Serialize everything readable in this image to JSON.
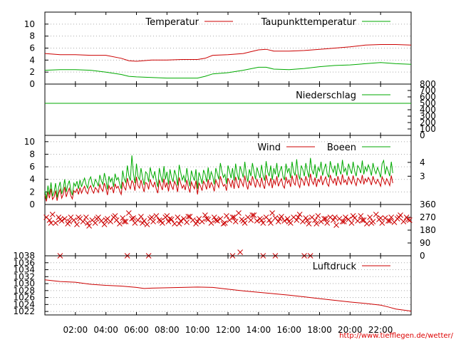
{
  "footer_url": "http://www.tiefflegen.de/wetter/",
  "time_axis": {
    "range_h": [
      0,
      24
    ],
    "ticks": [
      2,
      4,
      6,
      8,
      10,
      12,
      14,
      16,
      18,
      20,
      22
    ],
    "labels": [
      "02:00",
      "04:00",
      "06:00",
      "08:00",
      "10:00",
      "12:00",
      "14:00",
      "16:00",
      "18:00",
      "20:00",
      "22:00"
    ]
  },
  "chart_data": [
    {
      "type": "line",
      "id": "temperature",
      "ylim": [
        0,
        12
      ],
      "left_ticks": [
        0,
        2,
        4,
        6,
        8,
        10
      ],
      "grid": true,
      "legend_position": "top-right",
      "x": [
        0,
        1,
        2,
        3,
        4,
        5,
        5.5,
        6,
        7,
        8,
        9,
        10,
        10.5,
        11,
        12,
        13,
        14,
        14.5,
        15,
        16,
        17,
        18,
        19,
        20,
        21,
        22,
        23,
        24
      ],
      "series": [
        {
          "name": "Temperatur",
          "color": "#cc0000",
          "values": [
            5.1,
            4.9,
            4.9,
            4.8,
            4.8,
            4.3,
            3.9,
            3.8,
            4.0,
            4.0,
            4.1,
            4.1,
            4.3,
            4.8,
            4.9,
            5.1,
            5.7,
            5.8,
            5.5,
            5.5,
            5.6,
            5.8,
            6.0,
            6.2,
            6.5,
            6.6,
            6.6,
            6.5
          ]
        },
        {
          "name": "Taupunkttemperatur",
          "color": "#00aa00",
          "values": [
            2.3,
            2.4,
            2.4,
            2.3,
            2.0,
            1.6,
            1.3,
            1.2,
            1.1,
            1.0,
            1.0,
            1.0,
            1.3,
            1.7,
            1.9,
            2.3,
            2.8,
            2.8,
            2.5,
            2.4,
            2.6,
            2.9,
            3.1,
            3.2,
            3.4,
            3.6,
            3.4,
            3.3
          ]
        }
      ]
    },
    {
      "type": "line",
      "id": "precipitation",
      "ylim": [
        0,
        800
      ],
      "right_ticks": [
        0,
        100,
        200,
        300,
        400,
        500,
        600,
        700,
        800
      ],
      "legend_position": "top-right",
      "x": [
        0,
        24
      ],
      "series": [
        {
          "name": "Niederschlag",
          "color": "#00aa00",
          "values": [
            500,
            500
          ]
        }
      ]
    },
    {
      "type": "line",
      "id": "wind",
      "ylim": [
        0,
        11
      ],
      "left_ticks": [
        0,
        2,
        4,
        6,
        8,
        10
      ],
      "right_ticks": [
        3,
        4
      ],
      "right_tick_positions": [
        4.5,
        6.7
      ],
      "grid": true,
      "legend_position": "top-right",
      "x_start": 0,
      "x_step": 0.1,
      "series": [
        {
          "name": "Wind",
          "color": "#cc0000",
          "values": [
            1.5,
            0.5,
            2.0,
            1.0,
            2.5,
            0.8,
            1.2,
            2.2,
            0.6,
            1.8,
            2.4,
            1.0,
            1.6,
            2.8,
            1.2,
            2.0,
            2.6,
            1.4,
            0.9,
            2.2,
            1.9,
            2.5,
            1.6,
            2.7,
            1.8,
            2.4,
            2.9,
            2.1,
            1.7,
            2.6,
            3.0,
            2.2,
            1.8,
            2.7,
            2.4,
            1.9,
            3.2,
            2.5,
            2.1,
            3.4,
            2.6,
            1.5,
            3.0,
            2.4,
            2.8,
            1.8,
            3.3,
            2.6,
            2.9,
            2.2,
            1.6,
            3.6,
            2.7,
            2.3,
            4.2,
            3.1,
            2.5,
            3.8,
            3.4,
            2.2,
            4.4,
            3.0,
            2.6,
            3.9,
            2.9,
            2.0,
            3.5,
            3.3,
            2.4,
            4.0,
            3.2,
            2.8,
            3.6,
            2.5,
            1.8,
            3.9,
            3.0,
            2.3,
            4.1,
            2.7,
            3.5,
            2.1,
            3.8,
            2.9,
            2.4,
            3.7,
            3.1,
            2.0,
            4.3,
            3.4,
            2.6,
            3.1,
            2.3,
            3.9,
            2.8,
            1.9,
            3.6,
            3.0,
            2.5,
            3.8,
            1.6,
            3.4,
            2.9,
            2.2,
            3.7,
            3.2,
            2.4,
            4.0,
            2.6,
            3.5,
            3.0,
            2.1,
            3.9,
            3.3,
            2.7,
            4.5,
            3.6,
            2.9,
            3.2,
            2.2,
            4.2,
            3.6,
            2.8,
            3.9,
            2.5,
            4.4,
            3.3,
            2.6,
            4.1,
            3.5,
            2.9,
            4.6,
            3.2,
            2.4,
            3.8,
            3.0,
            4.5,
            3.6,
            2.7,
            4.0,
            3.4,
            2.8,
            4.3,
            3.1,
            2.5,
            4.7,
            3.5,
            3.0,
            4.2,
            2.6,
            3.9,
            3.2,
            4.5,
            2.9,
            3.6,
            4.1,
            3.0,
            2.6,
            4.4,
            3.4,
            3.9,
            2.8,
            4.6,
            3.5,
            3.1,
            4.8,
            3.3,
            2.7,
            4.2,
            3.8,
            3.0,
            4.5,
            3.6,
            2.9,
            4.9,
            3.7,
            3.2,
            4.3,
            2.8,
            4.0,
            3.6,
            4.6,
            3.1,
            3.8,
            4.4,
            3.3,
            2.9,
            4.7,
            3.9,
            3.4,
            4.2,
            3.0,
            4.5,
            3.7,
            3.2,
            4.8,
            3.5,
            3.9,
            3.1,
            4.4,
            3.8,
            3.3,
            4.6,
            3.6,
            3.0,
            4.2,
            3.9,
            3.4,
            4.7,
            3.2,
            4.1,
            3.6,
            4.3,
            3.8,
            3.1,
            4.5,
            3.7,
            3.3,
            4.0,
            3.5,
            2.9,
            4.4,
            3.8,
            3.2,
            4.1,
            3.6,
            3.0,
            4.6,
            3.4
          ]
        },
        {
          "name": "Boeen",
          "color": "#00aa00",
          "values": [
            2.2,
            0.9,
            3.0,
            1.6,
            3.5,
            1.3,
            2.0,
            3.4,
            1.1,
            2.7,
            3.6,
            1.7,
            2.5,
            4.0,
            2.0,
            3.1,
            3.8,
            2.3,
            1.5,
            3.4,
            2.9,
            3.7,
            2.5,
            3.9,
            2.8,
            3.6,
            4.2,
            3.2,
            2.6,
            3.9,
            4.4,
            3.3,
            2.8,
            4.0,
            3.6,
            2.9,
            4.7,
            3.8,
            3.2,
            5.0,
            3.9,
            2.4,
            4.5,
            3.6,
            4.2,
            2.8,
            4.9,
            3.9,
            4.3,
            3.3,
            2.5,
            5.4,
            4.0,
            3.5,
            6.2,
            4.6,
            3.8,
            7.8,
            5.0,
            3.4,
            6.5,
            4.5,
            3.9,
            5.8,
            4.3,
            3.1,
            5.2,
            4.9,
            3.6,
            5.9,
            4.8,
            4.2,
            5.3,
            3.8,
            2.8,
            5.8,
            4.5,
            3.5,
            6.1,
            4.0,
            5.2,
            3.2,
            5.6,
            4.3,
            3.6,
            5.5,
            4.6,
            3.0,
            6.3,
            5.1,
            3.9,
            4.6,
            3.5,
            5.8,
            4.2,
            2.9,
            5.4,
            4.5,
            3.8,
            5.6,
            2.5,
            5.1,
            4.3,
            3.3,
            5.5,
            4.8,
            3.6,
            5.9,
            3.9,
            5.2,
            4.5,
            3.2,
            5.8,
            4.9,
            4.0,
            6.6,
            5.3,
            4.3,
            4.8,
            3.3,
            6.2,
            5.3,
            4.2,
            5.8,
            3.8,
            6.5,
            4.9,
            3.9,
            6.1,
            5.2,
            4.3,
            6.8,
            4.8,
            3.6,
            5.6,
            4.5,
            6.6,
            5.3,
            4.0,
            5.9,
            5.0,
            4.2,
            6.3,
            4.6,
            3.8,
            6.9,
            5.2,
            4.5,
            6.2,
            3.9,
            5.8,
            4.8,
            6.6,
            4.3,
            5.3,
            6.1,
            4.5,
            3.9,
            6.5,
            5.1,
            5.8,
            4.2,
            6.8,
            5.2,
            4.6,
            7.2,
            4.9,
            4.0,
            6.2,
            5.6,
            4.5,
            6.6,
            5.3,
            4.3,
            7.4,
            5.5,
            4.8,
            6.4,
            4.2,
            5.9,
            5.3,
            6.8,
            4.6,
            5.6,
            6.5,
            4.9,
            4.3,
            6.9,
            5.8,
            5.1,
            6.2,
            4.5,
            6.6,
            5.5,
            4.8,
            7.1,
            5.2,
            5.8,
            4.6,
            6.5,
            5.6,
            4.9,
            6.8,
            5.3,
            4.5,
            6.2,
            5.8,
            5.0,
            7.0,
            4.8,
            6.0,
            5.3,
            6.3,
            5.6,
            4.6,
            6.6,
            5.5,
            4.9,
            5.9,
            5.2,
            4.3,
            6.5,
            7.0,
            4.8,
            6.0,
            5.3,
            4.5,
            6.8,
            5.0
          ]
        }
      ]
    },
    {
      "type": "scatter",
      "id": "wind_direction",
      "ylim": [
        0,
        360
      ],
      "right_ticks": [
        0,
        90,
        180,
        270,
        360
      ],
      "color": "#cc0000",
      "x": [
        0.1,
        0.3,
        0.5,
        0.7,
        0.9,
        1.1,
        1.3,
        1.5,
        1.7,
        1.9,
        2.1,
        2.3,
        2.5,
        2.7,
        2.9,
        3.1,
        3.3,
        3.5,
        3.7,
        3.9,
        4.1,
        4.3,
        4.5,
        4.7,
        4.9,
        5.1,
        5.3,
        5.5,
        5.7,
        5.9,
        6.1,
        6.3,
        6.5,
        6.7,
        6.9,
        7.1,
        7.3,
        7.5,
        7.7,
        7.9,
        8.1,
        8.3,
        8.5,
        8.7,
        8.9,
        9.1,
        9.3,
        9.5,
        9.7,
        9.9,
        10.1,
        10.3,
        10.5,
        10.7,
        10.9,
        11.1,
        11.3,
        11.5,
        11.7,
        11.9,
        12.1,
        12.3,
        12.5,
        12.7,
        12.9,
        13.1,
        13.3,
        13.5,
        13.7,
        13.9,
        14.1,
        14.3,
        14.5,
        14.7,
        14.9,
        15.1,
        15.3,
        15.5,
        15.7,
        15.9,
        16.1,
        16.3,
        16.5,
        16.7,
        16.9,
        17.1,
        17.3,
        17.5,
        17.7,
        17.9,
        18.1,
        18.3,
        18.5,
        18.7,
        18.9,
        19.1,
        19.3,
        19.5,
        19.7,
        19.9,
        20.1,
        20.3,
        20.5,
        20.7,
        20.9,
        21.1,
        21.3,
        21.5,
        21.7,
        21.9,
        22.1,
        22.3,
        22.5,
        22.7,
        22.9,
        23.1,
        23.3,
        23.5,
        23.7,
        23.9,
        0.4,
        1.0,
        1.6,
        2.2,
        2.8,
        3.4,
        4.0,
        4.6,
        5.2,
        5.8,
        6.4,
        7.0,
        7.6,
        8.2,
        8.8,
        9.4,
        10.0,
        10.6,
        11.2,
        11.8,
        12.4,
        13.0,
        13.6,
        14.2,
        14.8,
        15.4,
        16.0,
        16.6,
        17.2,
        17.8,
        18.4,
        19.0,
        19.6,
        20.2,
        20.8,
        21.4,
        22.0,
        22.6,
        23.2,
        23.8,
        1.0,
        5.4,
        6.8,
        12.3,
        14.3,
        15.1,
        17.0,
        17.4,
        12.8,
        8.0
      ],
      "y": [
        270,
        250,
        290,
        230,
        270,
        245,
        260,
        225,
        270,
        250,
        220,
        260,
        240,
        270,
        210,
        250,
        230,
        270,
        245,
        220,
        260,
        240,
        270,
        250,
        225,
        265,
        240,
        300,
        260,
        230,
        250,
        275,
        245,
        220,
        260,
        240,
        280,
        250,
        230,
        270,
        240,
        255,
        225,
        270,
        245,
        260,
        235,
        275,
        250,
        225,
        260,
        240,
        285,
        255,
        230,
        270,
        245,
        260,
        225,
        280,
        250,
        270,
        240,
        300,
        255,
        230,
        270,
        250,
        285,
        245,
        260,
        230,
        270,
        250,
        300,
        265,
        240,
        275,
        245,
        260,
        230,
        270,
        250,
        290,
        240,
        265,
        225,
        270,
        250,
        280,
        240,
        260,
        230,
        270,
        250,
        215,
        260,
        240,
        270,
        255,
        230,
        265,
        245,
        280,
        250,
        225,
        270,
        240,
        290,
        255,
        230,
        265,
        245,
        270,
        235,
        260,
        285,
        240,
        270,
        250,
        230,
        255,
        240,
        270,
        230,
        260,
        250,
        280,
        240,
        265,
        230,
        270,
        245,
        260,
        225,
        275,
        240,
        260,
        250,
        230,
        270,
        245,
        285,
        250,
        230,
        260,
        240,
        270,
        250,
        225,
        260,
        270,
        240,
        280,
        250,
        230,
        265,
        245,
        270,
        255,
        0,
        0,
        0,
        0,
        0,
        0,
        0,
        0,
        25,
        280
      ]
    },
    {
      "type": "line",
      "id": "pressure",
      "ylim": [
        1021,
        1038
      ],
      "left_ticks": [
        1022,
        1024,
        1026,
        1028,
        1030,
        1032,
        1034,
        1036,
        1038
      ],
      "grid": true,
      "legend_position": "top-right",
      "x": [
        0,
        1,
        2,
        3,
        4,
        5,
        6,
        6.5,
        7,
        8,
        9,
        10,
        11,
        12,
        13,
        14,
        15,
        16,
        17,
        18,
        19,
        20,
        21,
        22,
        22.5,
        23,
        24
      ],
      "series": [
        {
          "name": "Luftdruck",
          "color": "#cc0000",
          "values": [
            1031.1,
            1030.6,
            1030.4,
            1029.8,
            1029.5,
            1029.3,
            1028.9,
            1028.6,
            1028.7,
            1028.8,
            1028.9,
            1029.0,
            1028.9,
            1028.4,
            1027.9,
            1027.5,
            1027.1,
            1026.7,
            1026.2,
            1025.7,
            1025.2,
            1024.7,
            1024.3,
            1023.8,
            1023.3,
            1022.7,
            1022.1
          ]
        }
      ]
    }
  ]
}
